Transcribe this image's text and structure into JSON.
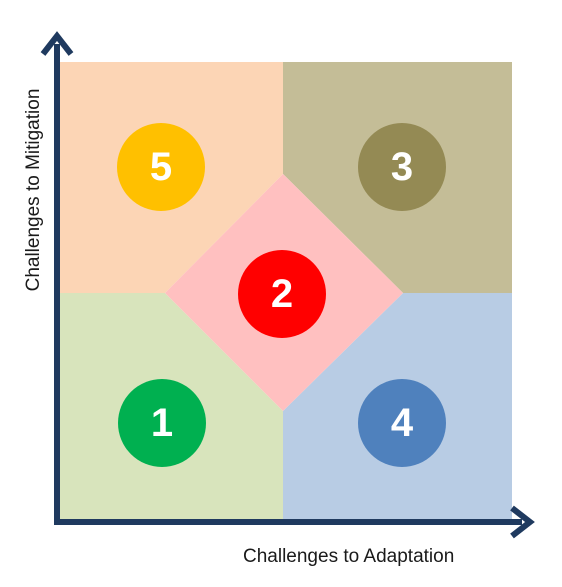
{
  "axes": {
    "x_label": "Challenges to Adaptation",
    "y_label": "Challenges to Mitigation",
    "color": "#1f3a5f"
  },
  "regions": [
    {
      "id": "1",
      "label": "1",
      "position": "bottom-left",
      "fill": "#d8e4bc",
      "circle_color": "#00b050"
    },
    {
      "id": "2",
      "label": "2",
      "position": "center",
      "fill": "#ffc0c0",
      "circle_color": "#ff0000"
    },
    {
      "id": "3",
      "label": "3",
      "position": "top-right",
      "fill": "#c4bd97",
      "circle_color": "#948a54"
    },
    {
      "id": "4",
      "label": "4",
      "position": "bottom-right",
      "fill": "#b8cce4",
      "circle_color": "#4f81bd"
    },
    {
      "id": "5",
      "label": "5",
      "position": "top-left",
      "fill": "#fcd5b5",
      "circle_color": "#ffc000"
    }
  ]
}
